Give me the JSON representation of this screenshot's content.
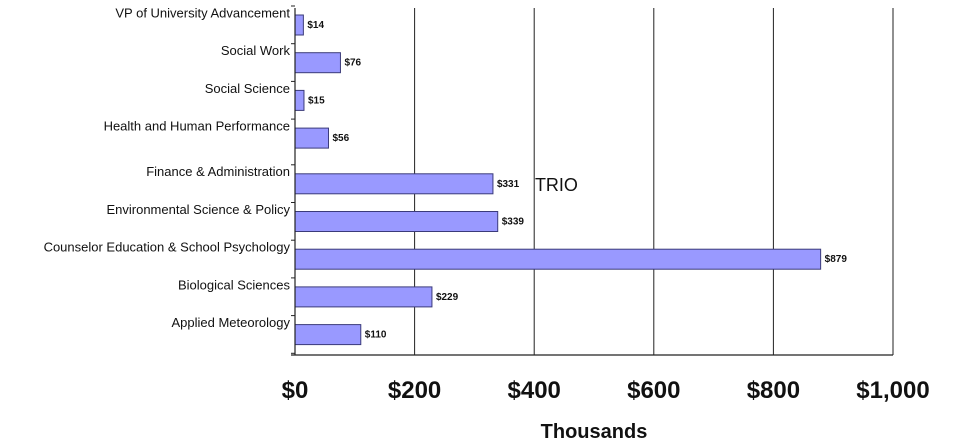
{
  "chart_data": {
    "type": "bar",
    "orientation": "horizontal",
    "categories": [
      "VP of University Advancement",
      "Social Work",
      "Social Science",
      "Health and Human Performance",
      "Finance & Administration",
      "Environmental Science & Policy",
      "Counselor Education & School Psychology",
      "Biological Sciences",
      "Applied Meteorology"
    ],
    "values": [
      14,
      76,
      15,
      56,
      331,
      339,
      879,
      229,
      110
    ],
    "value_labels": [
      "$14",
      "$76",
      "$15",
      "$56",
      "$331",
      "$339",
      "$879",
      "$229",
      "$110"
    ],
    "xlim": [
      0,
      1000
    ],
    "xticks": [
      0,
      200,
      400,
      600,
      800,
      1000
    ],
    "xtick_labels": [
      "$0",
      "$200",
      "$400",
      "$600",
      "$800",
      "$1,000"
    ],
    "xlabel": "Thousands",
    "ylabel": "",
    "title": "",
    "grid": "vertical gridlines at major ticks",
    "bar_color": "#9999ff",
    "bar_edge_color": "#3b3b7a",
    "annotations": [
      {
        "text": "TRIO",
        "category": "Finance & Administration"
      }
    ]
  }
}
